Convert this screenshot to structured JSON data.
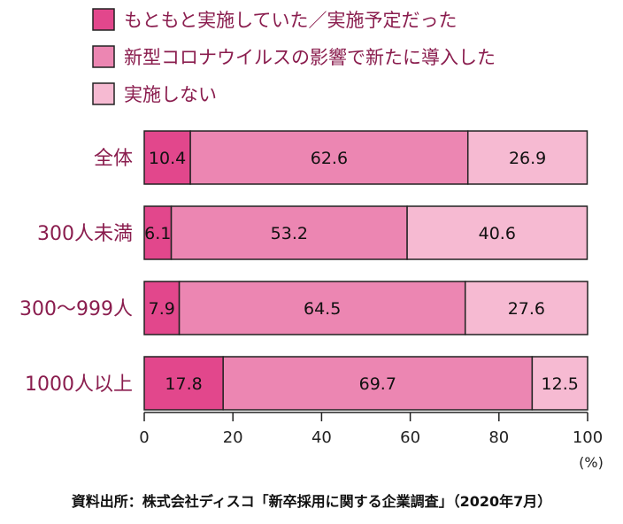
{
  "chart_data": {
    "type": "bar",
    "orientation": "horizontal",
    "stacked": true,
    "categories": [
      "全体",
      "300人未満",
      "300〜999人",
      "1000人以上"
    ],
    "series": [
      {
        "name": "もともと実施していた／実施予定だった",
        "color": "#e2478c",
        "values": [
          10.4,
          6.1,
          7.9,
          17.8
        ]
      },
      {
        "name": "新型コロナウイルスの影響で新たに導入した",
        "color": "#ec86b2",
        "values": [
          62.6,
          53.2,
          64.5,
          69.7
        ]
      },
      {
        "name": "実施しない",
        "color": "#f6bad2",
        "values": [
          26.9,
          40.6,
          27.6,
          12.5
        ]
      }
    ],
    "x_ticks": [
      "0",
      "20",
      "40",
      "60",
      "80",
      "100"
    ],
    "xlim": [
      0,
      100
    ],
    "x_unit": "(%)",
    "legend_position": "top-left",
    "grid": false
  },
  "source": "資料出所：株式会社ディスコ「新卒採用に関する企業調査」（2020年7月）"
}
